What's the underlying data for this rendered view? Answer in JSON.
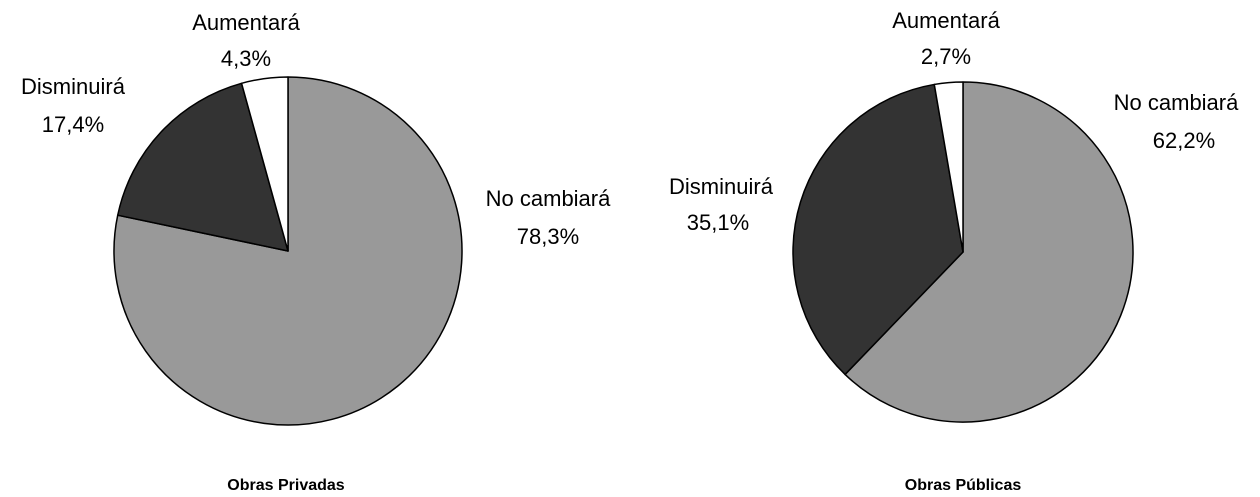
{
  "chart_data": [
    {
      "type": "pie",
      "title": "Obras Privadas",
      "slices": [
        {
          "label": "No cambiará",
          "value": 78.3,
          "value_label": "78,3%",
          "color": "#999999"
        },
        {
          "label": "Disminuirá",
          "value": 17.4,
          "value_label": "17,4%",
          "color": "#333333"
        },
        {
          "label": "Aumentará",
          "value": 4.3,
          "value_label": "4,3%",
          "color": "#ffffff"
        }
      ]
    },
    {
      "type": "pie",
      "title": "Obras Públicas",
      "slices": [
        {
          "label": "No cambiará",
          "value": 62.2,
          "value_label": "62,2%",
          "color": "#999999"
        },
        {
          "label": "Disminuirá",
          "value": 35.1,
          "value_label": "35,1%",
          "color": "#333333"
        },
        {
          "label": "Aumentará",
          "value": 2.7,
          "value_label": "2,7%",
          "color": "#ffffff"
        }
      ]
    }
  ]
}
